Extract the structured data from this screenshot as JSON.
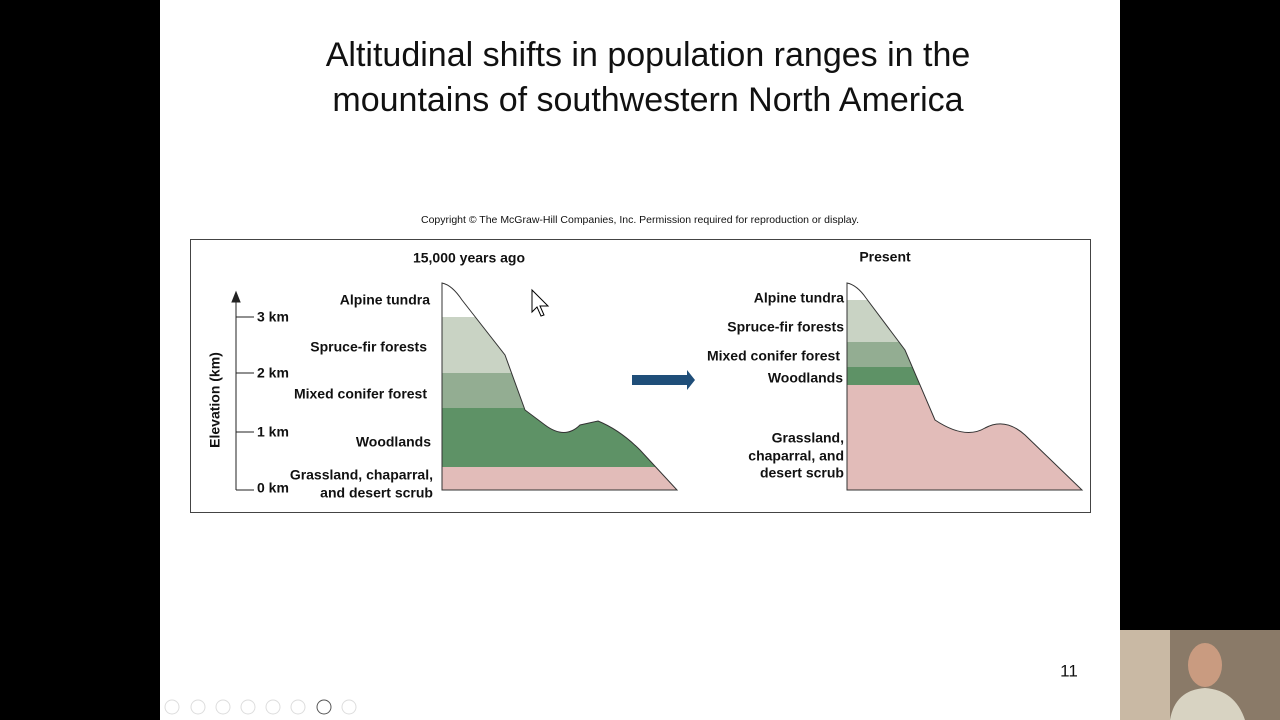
{
  "slide": {
    "title_lines": [
      "Altitudinal shifts in population ranges in the",
      "mountains of southwestern North America"
    ],
    "copyright": "Copyright © The McGraw-Hill Companies, Inc. Permission required for reproduction or display.",
    "axis": {
      "label": "Elevation (km)",
      "ticks": [
        "3 km",
        "2 km",
        "1 km",
        "0 km"
      ]
    },
    "past": {
      "heading": "15,000 years ago",
      "zones": [
        [
          "Alpine tundra"
        ],
        [
          "Spruce-fir forests"
        ],
        [
          "Mixed conifer forest"
        ],
        [
          "Woodlands"
        ],
        [
          "Grassland, chaparral,",
          "and desert scrub"
        ]
      ]
    },
    "present": {
      "heading": "Present",
      "zones": [
        [
          "Alpine tundra"
        ],
        [
          "Spruce-fir forests"
        ],
        [
          "Mixed conifer forest"
        ],
        [
          "Woodlands"
        ],
        [
          "Grassland,",
          "chaparral, and",
          "desert scrub"
        ]
      ]
    },
    "page_number": "11"
  }
}
